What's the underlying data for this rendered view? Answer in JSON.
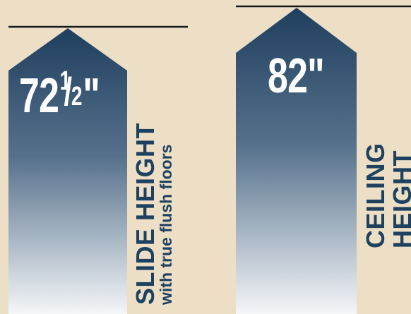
{
  "slide": {
    "whole": "72",
    "frac_num": "1",
    "frac_den": "2",
    "inch_mark": "\"",
    "label": "SLIDE HEIGHT",
    "sublabel": "with true flush floors"
  },
  "ceiling": {
    "value": "82\"",
    "label_line1": "CEILING",
    "label_line2": "HEIGHT"
  },
  "colors": {
    "background": "#ecdfc6",
    "bar_top": "#1f3f5e",
    "bar_bottom": "#f4f6f8",
    "label_text": "#1f4160",
    "line": "#1a1a1a"
  }
}
